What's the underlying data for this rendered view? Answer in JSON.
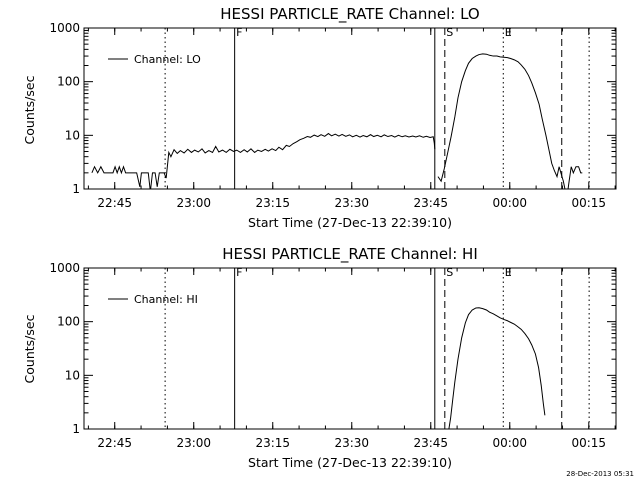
{
  "chart_data": [
    {
      "type": "line",
      "title": "HESSI PARTICLE_RATE Channel: LO",
      "xlabel": "Start Time (27-Dec-13 22:39:10)",
      "ylabel": "Counts/sec",
      "yscale": "log",
      "ylim": [
        1,
        1000
      ],
      "xlim_minutes": [
        0,
        101
      ],
      "x_tick_labels": [
        "22:45",
        "23:00",
        "23:15",
        "23:30",
        "23:45",
        "00:00",
        "00:15"
      ],
      "y_tick_labels": [
        "1",
        "10",
        "100",
        "1000"
      ],
      "legend": {
        "label": "Channel: LO",
        "placement": "top-left"
      },
      "markers": [
        {
          "label": "F",
          "minute": 28.6,
          "style": "solid"
        },
        {
          "label": "S",
          "minute": 68.5,
          "style": "dashed"
        },
        {
          "label": "E",
          "minute": 79.6,
          "style": "dotted"
        }
      ],
      "vlines": [
        {
          "minute": 15.4,
          "style": "dotted"
        },
        {
          "minute": 28.6,
          "style": "solid"
        },
        {
          "minute": 66.6,
          "style": "solid"
        },
        {
          "minute": 68.5,
          "style": "dashed"
        },
        {
          "minute": 79.6,
          "style": "dotted"
        },
        {
          "minute": 90.7,
          "style": "dashed"
        },
        {
          "minute": 95.9,
          "style": "dotted"
        }
      ],
      "series": [
        {
          "segments": [
            [
              [
                1.5,
                2.0
              ],
              [
                2.0,
                2.6
              ],
              [
                2.6,
                2.0
              ],
              [
                3.2,
                2.6
              ],
              [
                3.8,
                2.0
              ],
              [
                5.5,
                2.0
              ],
              [
                5.9,
                2.6
              ],
              [
                6.3,
                2.0
              ],
              [
                6.7,
                2.6
              ],
              [
                7.1,
                2.0
              ],
              [
                7.5,
                2.6
              ],
              [
                7.9,
                2.0
              ],
              [
                10.0,
                2.0
              ],
              [
                10.6,
                1.1
              ],
              [
                10.9,
                2.0
              ],
              [
                12.2,
                2.0
              ],
              [
                12.6,
                0.9
              ],
              [
                13.0,
                2.0
              ],
              [
                13.5,
                2.0
              ],
              [
                13.9,
                1.1
              ],
              [
                14.3,
                2.0
              ],
              [
                15.2,
                2.0
              ],
              [
                15.6,
                1.6
              ],
              [
                16.1,
                4.8
              ],
              [
                16.5,
                4.0
              ],
              [
                17.1,
                5.4
              ],
              [
                17.7,
                4.6
              ],
              [
                18.3,
                5.2
              ],
              [
                19.0,
                4.7
              ],
              [
                19.7,
                5.5
              ],
              [
                20.4,
                4.8
              ],
              [
                21.0,
                5.3
              ],
              [
                21.7,
                4.9
              ],
              [
                22.4,
                5.6
              ],
              [
                23.0,
                4.7
              ],
              [
                23.7,
                5.2
              ],
              [
                24.4,
                4.8
              ],
              [
                25.0,
                6.2
              ],
              [
                25.6,
                4.9
              ],
              [
                26.3,
                5.3
              ],
              [
                27.0,
                4.8
              ],
              [
                27.7,
                5.5
              ],
              [
                28.4,
                5.0
              ],
              [
                29.0,
                5.3
              ],
              [
                29.7,
                4.8
              ],
              [
                30.4,
                5.4
              ],
              [
                31.0,
                4.9
              ],
              [
                31.7,
                5.6
              ],
              [
                32.4,
                4.8
              ],
              [
                33.0,
                5.3
              ],
              [
                33.7,
                5.0
              ],
              [
                34.4,
                5.5
              ],
              [
                35.0,
                5.1
              ],
              [
                35.7,
                5.6
              ],
              [
                36.4,
                5.2
              ],
              [
                37.0,
                6.0
              ],
              [
                37.7,
                5.4
              ],
              [
                38.4,
                6.5
              ],
              [
                39.0,
                6.2
              ],
              [
                39.7,
                7.0
              ],
              [
                40.4,
                7.6
              ],
              [
                41.0,
                8.3
              ],
              [
                41.7,
                8.8
              ],
              [
                42.4,
                9.5
              ],
              [
                43.0,
                9.2
              ],
              [
                43.7,
                10.1
              ],
              [
                44.4,
                9.5
              ],
              [
                45.0,
                10.3
              ],
              [
                45.7,
                9.6
              ],
              [
                46.4,
                10.8
              ],
              [
                47.0,
                9.8
              ],
              [
                47.7,
                10.5
              ],
              [
                48.4,
                9.7
              ],
              [
                49.0,
                10.4
              ],
              [
                49.7,
                9.6
              ],
              [
                50.4,
                10.2
              ],
              [
                51.0,
                9.4
              ],
              [
                51.7,
                10.0
              ],
              [
                52.4,
                9.3
              ],
              [
                53.0,
                9.9
              ],
              [
                53.7,
                9.4
              ],
              [
                54.4,
                10.3
              ],
              [
                55.0,
                9.5
              ],
              [
                55.7,
                10.0
              ],
              [
                56.4,
                9.4
              ],
              [
                57.0,
                10.2
              ],
              [
                57.7,
                9.5
              ],
              [
                58.4,
                9.9
              ],
              [
                59.0,
                9.3
              ],
              [
                59.7,
                10.0
              ],
              [
                60.4,
                9.4
              ],
              [
                61.0,
                9.8
              ],
              [
                61.7,
                9.3
              ],
              [
                62.4,
                9.7
              ],
              [
                63.0,
                9.3
              ],
              [
                63.7,
                9.8
              ],
              [
                64.4,
                9.2
              ],
              [
                65.0,
                9.6
              ],
              [
                65.7,
                9.1
              ],
              [
                66.3,
                9.4
              ],
              [
                66.5,
                7.2
              ],
              [
                66.6,
                5.5
              ]
            ],
            [
              [
                67.2,
                1.7
              ],
              [
                67.8,
                1.4
              ],
              [
                68.4,
                2.4
              ],
              [
                69.0,
                4.5
              ],
              [
                69.7,
                9.5
              ],
              [
                70.4,
                22
              ],
              [
                71.0,
                50
              ],
              [
                71.7,
                100
              ],
              [
                72.4,
                160
              ],
              [
                73.0,
                220
              ],
              [
                73.7,
                270
              ],
              [
                74.4,
                300
              ],
              [
                75.0,
                320
              ],
              [
                75.7,
                330
              ],
              [
                76.4,
                325
              ],
              [
                77.0,
                310
              ],
              [
                77.7,
                300
              ],
              [
                78.4,
                300
              ],
              [
                79.0,
                290
              ],
              [
                79.7,
                285
              ],
              [
                80.4,
                280
              ],
              [
                81.0,
                270
              ],
              [
                81.7,
                255
              ],
              [
                82.4,
                235
              ],
              [
                83.0,
                205
              ],
              [
                83.7,
                170
              ],
              [
                84.4,
                130
              ],
              [
                85.0,
                95
              ],
              [
                85.7,
                62
              ],
              [
                86.4,
                38
              ],
              [
                87.0,
                20
              ],
              [
                87.7,
                10
              ],
              [
                88.3,
                5.2
              ],
              [
                88.8,
                3.0
              ],
              [
                89.3,
                2.2
              ],
              [
                89.8,
                1.7
              ],
              [
                90.2,
                2.6
              ],
              [
                90.6,
                1.9
              ],
              [
                91.0,
                1.4
              ],
              [
                91.4,
                0.9
              ],
              [
                91.8,
                0.85
              ],
              [
                92.1,
                1.4
              ],
              [
                92.5,
                2.6
              ],
              [
                92.9,
                2.0
              ],
              [
                93.4,
                2.6
              ],
              [
                93.9,
                2.6
              ],
              [
                94.3,
                2.0
              ],
              [
                94.6,
                2.0
              ]
            ]
          ]
        }
      ]
    },
    {
      "type": "line",
      "title": "HESSI PARTICLE_RATE Channel: HI",
      "xlabel": "Start Time (27-Dec-13 22:39:10)",
      "ylabel": "Counts/sec",
      "yscale": "log",
      "ylim": [
        1,
        1000
      ],
      "xlim_minutes": [
        0,
        101
      ],
      "x_tick_labels": [
        "22:45",
        "23:00",
        "23:15",
        "23:30",
        "23:45",
        "00:00",
        "00:15"
      ],
      "y_tick_labels": [
        "1",
        "10",
        "100",
        "1000"
      ],
      "legend": {
        "label": "Channel: HI",
        "placement": "top-left"
      },
      "markers": [
        {
          "label": "F",
          "minute": 28.6,
          "style": "solid"
        },
        {
          "label": "S",
          "minute": 68.5,
          "style": "dashed"
        },
        {
          "label": "E",
          "minute": 79.6,
          "style": "dotted"
        }
      ],
      "vlines": [
        {
          "minute": 15.4,
          "style": "dotted"
        },
        {
          "minute": 28.6,
          "style": "solid"
        },
        {
          "minute": 66.6,
          "style": "solid"
        },
        {
          "minute": 68.5,
          "style": "dashed"
        },
        {
          "minute": 79.6,
          "style": "dotted"
        },
        {
          "minute": 90.7,
          "style": "dashed"
        },
        {
          "minute": 95.9,
          "style": "dotted"
        }
      ],
      "series": [
        {
          "segments": [
            [
              [
                69.2,
                0.9
              ],
              [
                69.6,
                1.6
              ],
              [
                70.0,
                3.5
              ],
              [
                70.4,
                7.5
              ],
              [
                71.0,
                20
              ],
              [
                71.7,
                50
              ],
              [
                72.4,
                95
              ],
              [
                73.0,
                135
              ],
              [
                73.7,
                165
              ],
              [
                74.4,
                180
              ],
              [
                75.0,
                182
              ],
              [
                75.7,
                175
              ],
              [
                76.4,
                165
              ],
              [
                77.0,
                150
              ],
              [
                77.7,
                140
              ],
              [
                78.4,
                128
              ],
              [
                79.0,
                118
              ],
              [
                79.7,
                110
              ],
              [
                80.4,
                104
              ],
              [
                81.0,
                97
              ],
              [
                81.7,
                90
              ],
              [
                82.4,
                80
              ],
              [
                83.0,
                72
              ],
              [
                83.7,
                60
              ],
              [
                84.4,
                48
              ],
              [
                85.0,
                37
              ],
              [
                85.7,
                25
              ],
              [
                86.3,
                14
              ],
              [
                86.8,
                6.5
              ],
              [
                87.2,
                3.0
              ],
              [
                87.5,
                1.8
              ]
            ]
          ]
        }
      ]
    }
  ],
  "footer": {
    "timestamp": "28-Dec-2013 05:31"
  }
}
